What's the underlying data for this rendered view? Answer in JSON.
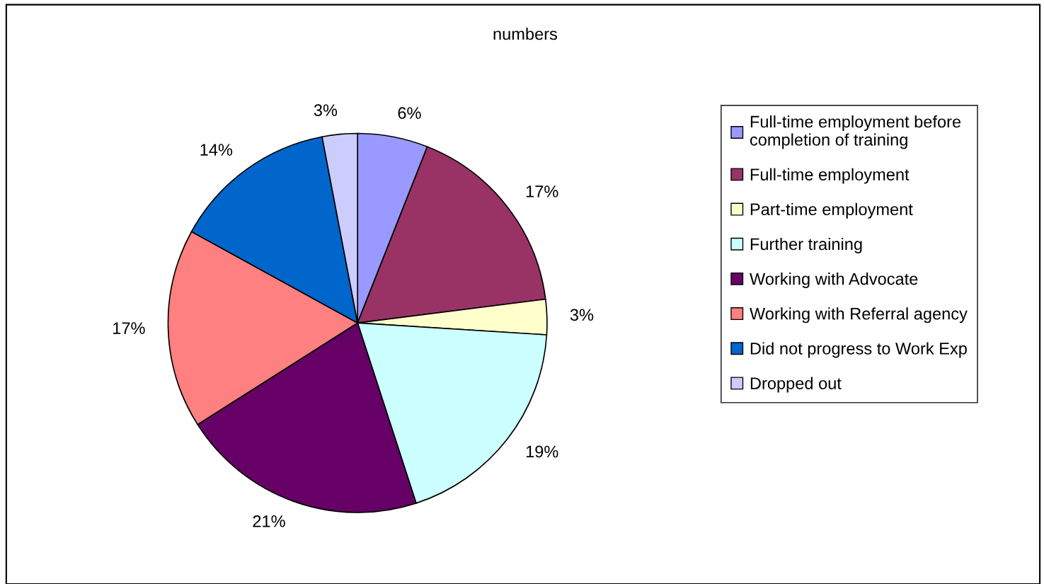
{
  "chart_data": {
    "type": "pie",
    "title": "numbers",
    "categories": [
      "Full-time employment before\ncompletion of training",
      "Full-time employment",
      "Part-time employment",
      "Further training",
      "Working with Advocate",
      "Working with Referral agency",
      "Did not progress to Work Exp",
      "Dropped out"
    ],
    "values": [
      6,
      17,
      3,
      19,
      21,
      17,
      14,
      3
    ],
    "colors": [
      "#9999ff",
      "#993366",
      "#ffffcc",
      "#ccffff",
      "#660066",
      "#ff8080",
      "#0066cc",
      "#ccccff"
    ],
    "value_labels": [
      "6%",
      "17%",
      "3%",
      "19%",
      "21%",
      "17%",
      "14%",
      "3%"
    ],
    "legend": "right"
  }
}
